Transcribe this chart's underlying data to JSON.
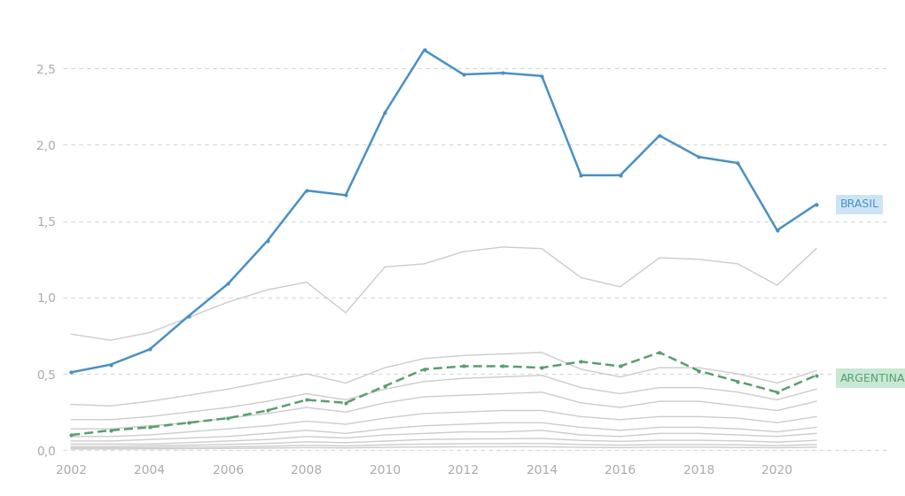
{
  "years": [
    2002,
    2003,
    2004,
    2005,
    2006,
    2007,
    2008,
    2009,
    2010,
    2011,
    2012,
    2013,
    2014,
    2015,
    2016,
    2017,
    2018,
    2019,
    2020,
    2021
  ],
  "brasil": [
    0.51,
    0.56,
    0.66,
    0.88,
    1.09,
    1.37,
    1.7,
    1.67,
    2.21,
    2.62,
    2.46,
    2.47,
    2.45,
    1.8,
    1.8,
    2.06,
    1.92,
    1.88,
    1.44,
    1.61
  ],
  "argentina": [
    0.1,
    0.13,
    0.15,
    0.18,
    0.21,
    0.26,
    0.33,
    0.31,
    0.42,
    0.53,
    0.55,
    0.55,
    0.54,
    0.58,
    0.55,
    0.64,
    0.52,
    0.45,
    0.38,
    0.49
  ],
  "grey_lines": [
    [
      0.76,
      0.72,
      0.77,
      0.87,
      0.97,
      1.05,
      1.1,
      0.9,
      1.2,
      1.22,
      1.3,
      1.33,
      1.32,
      1.13,
      1.07,
      1.26,
      1.25,
      1.22,
      1.08,
      1.32
    ],
    [
      0.3,
      0.29,
      0.32,
      0.36,
      0.4,
      0.45,
      0.5,
      0.44,
      0.54,
      0.6,
      0.62,
      0.63,
      0.64,
      0.53,
      0.48,
      0.54,
      0.54,
      0.5,
      0.44,
      0.52
    ],
    [
      0.2,
      0.2,
      0.22,
      0.25,
      0.28,
      0.32,
      0.37,
      0.33,
      0.4,
      0.45,
      0.47,
      0.48,
      0.49,
      0.41,
      0.37,
      0.41,
      0.41,
      0.38,
      0.33,
      0.4
    ],
    [
      0.14,
      0.14,
      0.16,
      0.18,
      0.21,
      0.24,
      0.28,
      0.25,
      0.31,
      0.35,
      0.36,
      0.37,
      0.38,
      0.31,
      0.28,
      0.32,
      0.32,
      0.29,
      0.26,
      0.32
    ],
    [
      0.09,
      0.09,
      0.1,
      0.12,
      0.14,
      0.16,
      0.19,
      0.17,
      0.21,
      0.24,
      0.25,
      0.26,
      0.26,
      0.22,
      0.2,
      0.22,
      0.22,
      0.21,
      0.18,
      0.22
    ],
    [
      0.06,
      0.06,
      0.07,
      0.08,
      0.09,
      0.11,
      0.13,
      0.11,
      0.14,
      0.16,
      0.17,
      0.18,
      0.18,
      0.15,
      0.13,
      0.15,
      0.15,
      0.14,
      0.12,
      0.15
    ],
    [
      0.04,
      0.04,
      0.04,
      0.05,
      0.06,
      0.07,
      0.09,
      0.08,
      0.1,
      0.11,
      0.12,
      0.12,
      0.13,
      0.1,
      0.09,
      0.11,
      0.11,
      0.1,
      0.09,
      0.11
    ],
    [
      0.025,
      0.025,
      0.028,
      0.033,
      0.038,
      0.044,
      0.055,
      0.049,
      0.06,
      0.07,
      0.073,
      0.075,
      0.077,
      0.064,
      0.058,
      0.065,
      0.065,
      0.061,
      0.053,
      0.065
    ],
    [
      0.015,
      0.015,
      0.017,
      0.02,
      0.022,
      0.026,
      0.032,
      0.028,
      0.035,
      0.04,
      0.042,
      0.043,
      0.044,
      0.037,
      0.033,
      0.037,
      0.037,
      0.035,
      0.03,
      0.037
    ],
    [
      0.008,
      0.008,
      0.009,
      0.01,
      0.012,
      0.014,
      0.017,
      0.015,
      0.019,
      0.021,
      0.022,
      0.023,
      0.023,
      0.019,
      0.017,
      0.02,
      0.02,
      0.018,
      0.016,
      0.02
    ]
  ],
  "brasil_color": "#4a90c4",
  "argentina_color": "#5a9e6f",
  "grey_color": "#cccccc",
  "background_color": "#ffffff",
  "yticks": [
    0.0,
    0.5,
    1.0,
    1.5,
    2.0,
    2.5
  ],
  "ylim": [
    -0.04,
    2.85
  ],
  "grid_color": "#d8d8d8",
  "brasil_label_bg": "#cce5f5",
  "argentina_label_bg": "#c8e8d4"
}
